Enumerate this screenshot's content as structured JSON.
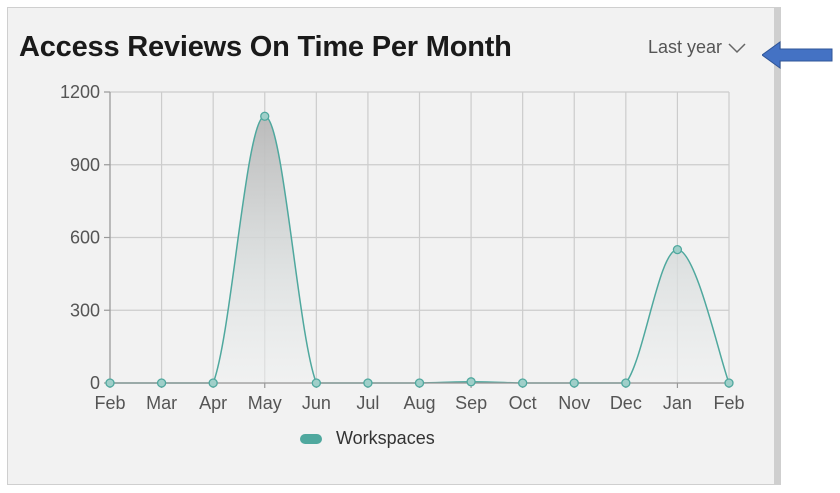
{
  "card": {
    "title": "Access Reviews On Time Per Month",
    "range_label": "Last year"
  },
  "colors": {
    "series": "#4fa89e",
    "arrow": "#4472c4",
    "grid": "#cccccc"
  },
  "chart_data": {
    "type": "area",
    "categories": [
      "Feb",
      "Mar",
      "Apr",
      "May",
      "Jun",
      "Jul",
      "Aug",
      "Sep",
      "Oct",
      "Nov",
      "Dec",
      "Jan",
      "Feb"
    ],
    "series": [
      {
        "name": "Workspaces",
        "values": [
          0,
          0,
          0,
          1100,
          0,
          0,
          0,
          5,
          0,
          0,
          0,
          550,
          0
        ]
      }
    ],
    "yticks": [
      "0",
      "300",
      "600",
      "900",
      "1200"
    ],
    "ylim": [
      0,
      1200
    ],
    "grid": true,
    "legend_position": "bottom",
    "title": "Access Reviews On Time Per Month",
    "xlabel": "",
    "ylabel": ""
  }
}
